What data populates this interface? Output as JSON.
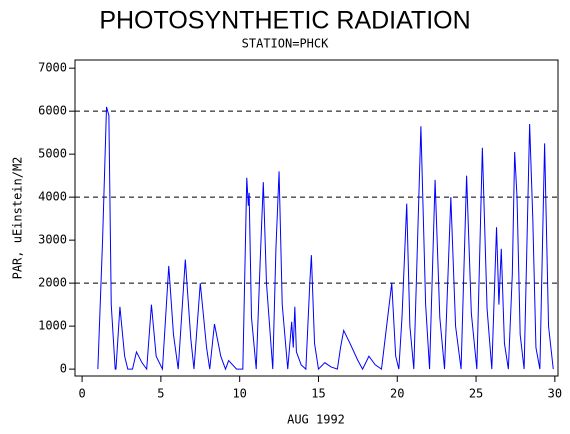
{
  "chart_data": {
    "type": "line",
    "title": "PHOTOSYNTHETIC RADIATION",
    "subtitle": "STATION=PHCK",
    "x_label": "AUG 1992",
    "y_label": "PAR, uEinstein/M2",
    "xlim": [
      -0.45,
      30.2
    ],
    "ylim": [
      -160,
      7190
    ],
    "xticks": [
      0,
      5,
      10,
      15,
      20,
      25,
      30
    ],
    "yticks": [
      0,
      1000,
      2000,
      3000,
      4000,
      5000,
      6000,
      7000
    ],
    "ygrid": [
      2000,
      4000,
      6000
    ],
    "series": [
      {
        "color": "#0000ff",
        "x": [
          1.0,
          1.3,
          1.55,
          1.7,
          1.85,
          2.1,
          2.15,
          2.4,
          2.7,
          2.9,
          3.2,
          3.45,
          3.8,
          4.1,
          4.4,
          4.7,
          5.1,
          5.5,
          5.8,
          6.1,
          6.55,
          6.9,
          7.1,
          7.5,
          7.9,
          8.1,
          8.4,
          8.8,
          9.1,
          9.3,
          9.8,
          10.2,
          10.45,
          10.55,
          10.6,
          10.75,
          11.05,
          11.3,
          11.5,
          11.7,
          12.1,
          12.3,
          12.5,
          12.7,
          13.05,
          13.3,
          13.4,
          13.5,
          13.6,
          13.9,
          14.2,
          14.45,
          14.55,
          14.75,
          15.0,
          15.4,
          15.8,
          16.2,
          16.4,
          16.6,
          17.0,
          17.5,
          17.8,
          18.2,
          18.6,
          19.0,
          19.65,
          19.9,
          20.1,
          20.3,
          20.6,
          20.8,
          21.05,
          21.5,
          21.8,
          22.05,
          22.4,
          22.7,
          23.0,
          23.4,
          23.7,
          24.05,
          24.4,
          24.7,
          25.05,
          25.4,
          25.7,
          26.0,
          26.3,
          26.45,
          26.6,
          26.8,
          27.05,
          27.3,
          27.45,
          27.6,
          27.8,
          28.05,
          28.4,
          28.6,
          28.8,
          29.05,
          29.35,
          29.6,
          29.9
        ],
        "values": [
          0,
          3000,
          6100,
          5900,
          1500,
          0,
          0,
          1450,
          300,
          0,
          0,
          400,
          150,
          0,
          1500,
          300,
          0,
          2400,
          800,
          0,
          2550,
          700,
          0,
          2000,
          500,
          0,
          1050,
          300,
          0,
          200,
          0,
          0,
          4450,
          3800,
          4100,
          1200,
          0,
          2500,
          4350,
          2000,
          0,
          2800,
          4600,
          1500,
          0,
          1100,
          500,
          1450,
          400,
          100,
          0,
          2000,
          2650,
          600,
          0,
          150,
          50,
          0,
          500,
          900,
          600,
          200,
          0,
          300,
          100,
          0,
          2000,
          300,
          0,
          1200,
          3850,
          1000,
          0,
          5650,
          1500,
          0,
          4400,
          1200,
          0,
          4000,
          1000,
          0,
          4500,
          1300,
          0,
          5150,
          1400,
          0,
          3300,
          1500,
          2800,
          600,
          0,
          2200,
          5050,
          4000,
          800,
          0,
          5700,
          3500,
          500,
          0,
          5250,
          1000,
          0
        ]
      }
    ]
  }
}
